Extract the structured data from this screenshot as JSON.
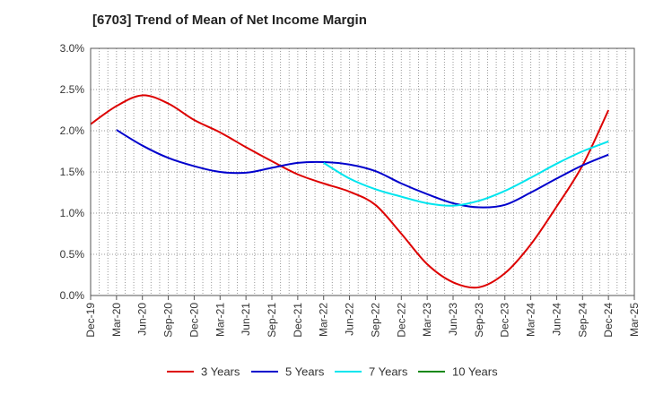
{
  "chart_data": {
    "type": "line",
    "title": "[6703]  Trend of Mean of Net Income Margin",
    "xlabel": "",
    "ylabel": "",
    "x": [
      "Dec-19",
      "Mar-20",
      "Jun-20",
      "Sep-20",
      "Dec-20",
      "Mar-21",
      "Jun-21",
      "Sep-21",
      "Dec-21",
      "Mar-22",
      "Jun-22",
      "Sep-22",
      "Dec-22",
      "Mar-23",
      "Jun-23",
      "Sep-23",
      "Dec-23",
      "Mar-24",
      "Jun-24",
      "Sep-24",
      "Dec-24",
      "Mar-25"
    ],
    "ylim": [
      0,
      3.0
    ],
    "yticks": [
      "0.0%",
      "0.5%",
      "1.0%",
      "1.5%",
      "2.0%",
      "2.5%",
      "3.0%"
    ],
    "grid": true,
    "legend_position": "bottom",
    "series": [
      {
        "name": "3 Years",
        "color": "#dd0000",
        "values": [
          2.08,
          2.3,
          2.43,
          2.33,
          2.13,
          1.98,
          1.8,
          1.63,
          1.47,
          1.36,
          1.26,
          1.1,
          0.75,
          0.38,
          0.16,
          0.1,
          0.27,
          0.62,
          1.08,
          1.58,
          2.25,
          null
        ]
      },
      {
        "name": "5 Years",
        "color": "#0000cc",
        "values": [
          null,
          2.01,
          1.82,
          1.67,
          1.57,
          1.5,
          1.49,
          1.55,
          1.61,
          1.62,
          1.59,
          1.51,
          1.36,
          1.23,
          1.12,
          1.07,
          1.1,
          1.25,
          1.42,
          1.58,
          1.71,
          null
        ]
      },
      {
        "name": "7 Years",
        "color": "#00e5ee",
        "values": [
          null,
          null,
          null,
          null,
          null,
          null,
          null,
          null,
          null,
          1.61,
          1.42,
          1.29,
          1.2,
          1.12,
          1.09,
          1.15,
          1.27,
          1.43,
          1.6,
          1.75,
          1.87,
          null
        ]
      },
      {
        "name": "10 Years",
        "color": "#118811",
        "values": [
          null,
          null,
          null,
          null,
          null,
          null,
          null,
          null,
          null,
          null,
          null,
          null,
          null,
          null,
          null,
          null,
          null,
          null,
          null,
          null,
          null,
          null
        ]
      }
    ]
  }
}
